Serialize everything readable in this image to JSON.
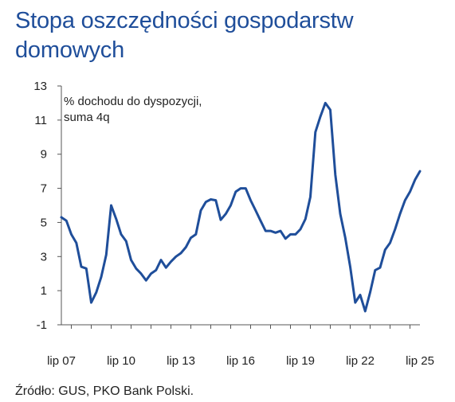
{
  "title": "Stopa oszczędności gospodarstw domowych",
  "source": "Źródło: GUS, PKO Bank Polski.",
  "colors": {
    "title": "#1f4e9a",
    "line": "#1f4e9a",
    "text": "#222222",
    "axis": "#555555"
  },
  "chart_data": {
    "type": "line",
    "title": "Stopa oszczędności gospodarstw domowych",
    "annotation": [
      "% dochodu do dyspozycji,",
      "suma 4q"
    ],
    "xlabel": "",
    "ylabel": "",
    "ylim": [
      -1,
      13
    ],
    "yticks": [
      -1,
      1,
      3,
      5,
      7,
      9,
      11,
      13
    ],
    "xlim": [
      "2007Q3",
      "2025Q3"
    ],
    "xticks": [
      "lip 07",
      "lip 10",
      "lip 13",
      "lip 16",
      "lip 19",
      "lip 22",
      "lip 25"
    ],
    "grid": false,
    "legend": "none",
    "series": [
      {
        "x": [
          "2007Q3",
          "2007Q4",
          "2008Q1",
          "2008Q2",
          "2008Q3",
          "2008Q4",
          "2009Q1",
          "2009Q2",
          "2009Q3",
          "2009Q4",
          "2010Q1",
          "2010Q2",
          "2010Q3",
          "2010Q4",
          "2011Q1",
          "2011Q2",
          "2011Q3",
          "2011Q4",
          "2012Q1",
          "2012Q2",
          "2012Q3",
          "2012Q4",
          "2013Q1",
          "2013Q2",
          "2013Q3",
          "2013Q4",
          "2014Q1",
          "2014Q2",
          "2014Q3",
          "2014Q4",
          "2015Q1",
          "2015Q2",
          "2015Q3",
          "2015Q4",
          "2016Q1",
          "2016Q2",
          "2016Q3",
          "2016Q4",
          "2017Q1",
          "2017Q2",
          "2017Q3",
          "2017Q4",
          "2018Q1",
          "2018Q2",
          "2018Q3",
          "2018Q4",
          "2019Q1",
          "2019Q2",
          "2019Q3",
          "2019Q4",
          "2020Q1",
          "2020Q2",
          "2020Q3",
          "2020Q4",
          "2021Q1",
          "2021Q2",
          "2021Q3",
          "2021Q4",
          "2022Q1",
          "2022Q2",
          "2022Q3",
          "2022Q4",
          "2023Q1",
          "2023Q2",
          "2023Q3",
          "2023Q4",
          "2024Q1",
          "2024Q2",
          "2024Q3",
          "2024Q4",
          "2025Q1",
          "2025Q2",
          "2025Q3"
        ],
        "values": [
          5.3,
          5.1,
          4.3,
          3.8,
          2.4,
          2.3,
          0.3,
          0.9,
          1.8,
          3.1,
          6.0,
          5.2,
          4.3,
          3.9,
          2.8,
          2.3,
          2.0,
          1.6,
          2.0,
          2.2,
          2.8,
          2.35,
          2.7,
          3.0,
          3.2,
          3.55,
          4.1,
          4.3,
          5.7,
          6.2,
          6.35,
          6.3,
          5.15,
          5.5,
          6.0,
          6.8,
          7.0,
          7.0,
          6.3,
          5.7,
          5.1,
          4.5,
          4.5,
          4.4,
          4.5,
          4.05,
          4.3,
          4.3,
          4.6,
          5.2,
          6.5,
          10.3,
          11.2,
          12.0,
          11.6,
          7.8,
          5.5,
          4.1,
          2.4,
          0.3,
          0.75,
          -0.2,
          0.9,
          2.2,
          2.35,
          3.4,
          3.8,
          4.6,
          5.5,
          6.3,
          6.8,
          7.5,
          8.0
        ]
      }
    ]
  }
}
